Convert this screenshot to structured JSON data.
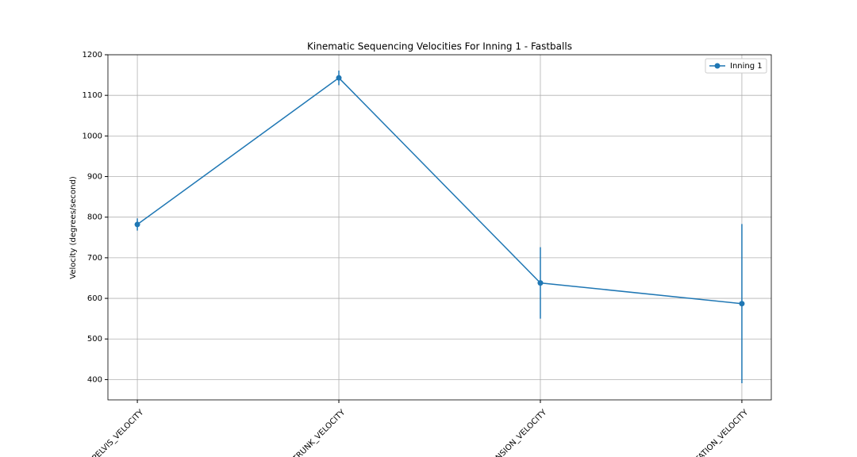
{
  "chart_data": {
    "type": "line",
    "title": "Kinematic Sequencing Velocities For Inning 1 - Fastballs",
    "y_label": "Velocity (degrees/second)",
    "categories": [
      "PELVIS_VELOCITY",
      "TRUNK_VELOCITY",
      "ENSION_VELOCITY",
      "TATION_VELOCITY"
    ],
    "series": [
      {
        "name": "Inning 1",
        "color": "#1f77b4",
        "values": [
          782,
          1143,
          638,
          587
        ],
        "errors": [
          15,
          18,
          88,
          196
        ]
      }
    ],
    "ylim": [
      350,
      1200
    ],
    "yticks": [
      400,
      500,
      600,
      700,
      800,
      900,
      1000,
      1100,
      1200
    ],
    "grid": true,
    "legend": "upper right"
  }
}
